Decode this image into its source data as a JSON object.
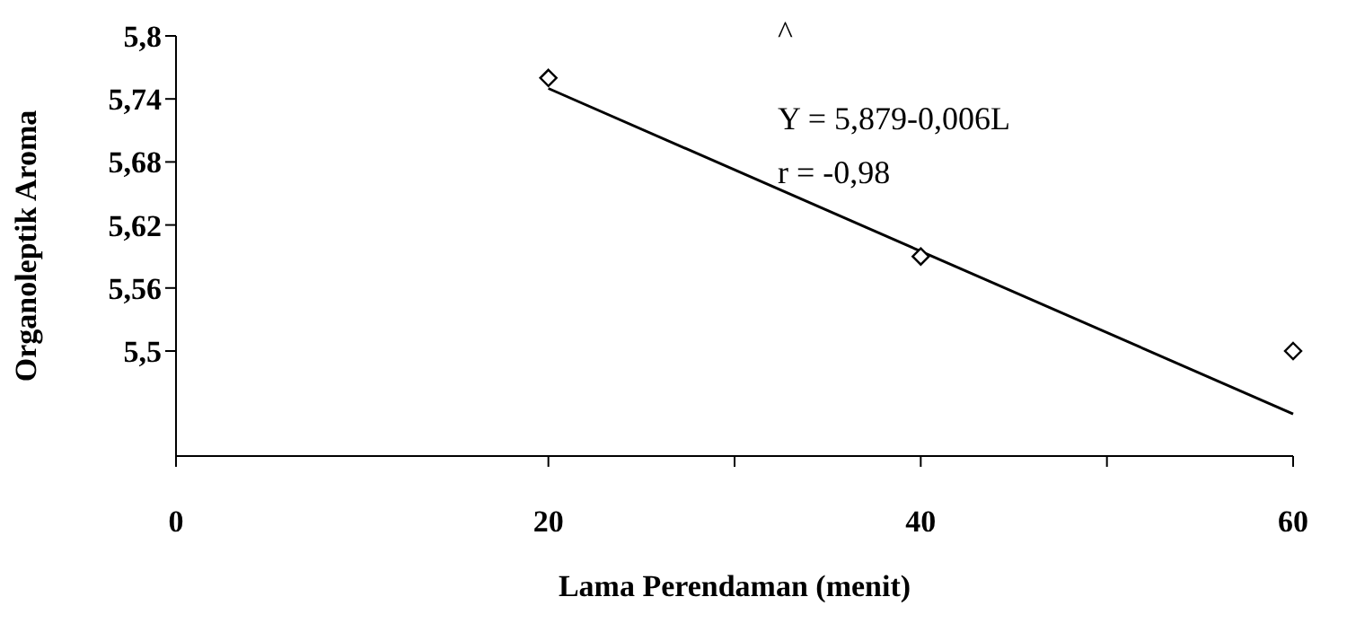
{
  "chart_data": {
    "type": "scatter",
    "xlabel": "Lama Perendaman (menit)",
    "ylabel": "Organoleptik Aroma",
    "annotations": [
      "^",
      "Y = 5,879-0,006L",
      "r  = -0,98"
    ],
    "marker": "diamond",
    "grid": false,
    "legend": false,
    "xlim": [
      0,
      60
    ],
    "xticks": [
      0,
      20,
      {
        "value": 30,
        "label": null
      },
      40,
      {
        "value": 50,
        "label": null
      },
      60
    ],
    "ylim": [
      5.4,
      5.8
    ],
    "yticks": [
      {
        "value": 5.5,
        "label": "5,5"
      },
      {
        "value": 5.56,
        "label": "5,56"
      },
      {
        "value": 5.62,
        "label": "5,62"
      },
      {
        "value": 5.68,
        "label": "5,68"
      },
      {
        "value": 5.74,
        "label": "5,74"
      },
      {
        "value": 5.8,
        "label": "5,8"
      }
    ],
    "series": [
      {
        "color": "#000000",
        "x": [
          20,
          40,
          60
        ],
        "values": [
          5.76,
          5.59,
          5.5
        ]
      },
      {
        "type": "line",
        "color": "#000000",
        "marker": "none",
        "x": [
          20,
          60
        ],
        "values": [
          5.75,
          5.44
        ]
      }
    ]
  }
}
